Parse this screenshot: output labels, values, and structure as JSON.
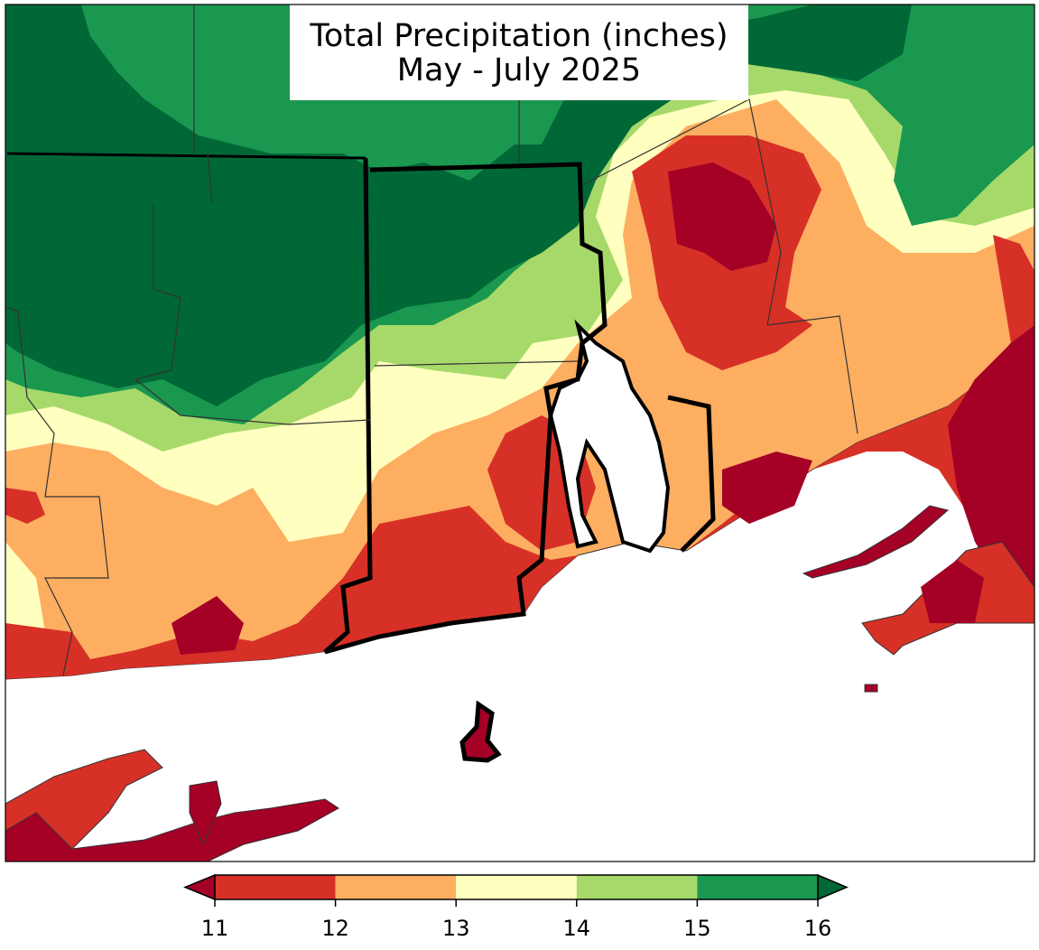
{
  "title": [
    "Total Precipitation (inches)",
    "May - July 2025"
  ],
  "colorbar": {
    "ticks": [
      11,
      12,
      13,
      14,
      15,
      16
    ],
    "colors": [
      "#d73027",
      "#fdae61",
      "#ffffbf",
      "#a6d96a",
      "#1a9850"
    ],
    "under_color": "#a50026",
    "over_color": "#006837"
  }
}
